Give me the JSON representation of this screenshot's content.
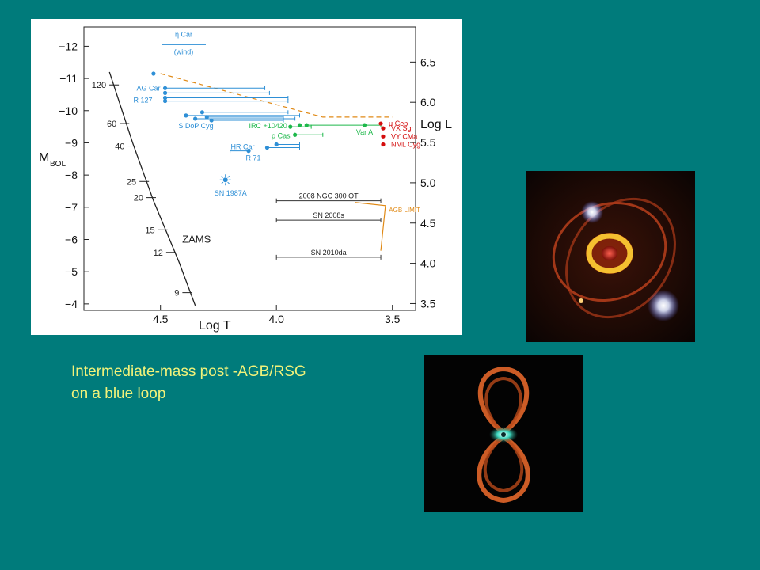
{
  "caption": {
    "line1": "Intermediate-mass post -AGB/RSG",
    "line2": "on a blue loop"
  },
  "chart_data": {
    "type": "scatter",
    "title": "",
    "xlabel": "Log  T",
    "ylabel_left": "M",
    "ylabel_left_sub": "BOL",
    "ylabel_right": "Log  L",
    "xlim": [
      4.83,
      3.4
    ],
    "ylim_mbol": [
      -3.8,
      -12.6
    ],
    "x_ticks": [
      4.5,
      4.0,
      3.5
    ],
    "x_tick_labels": [
      "4.5",
      "4.0",
      "3.5"
    ],
    "y_left_ticks": [
      -12,
      -11,
      -10,
      -9,
      -8,
      -7,
      -6,
      -5,
      -4
    ],
    "y_left_tick_labels": [
      "−12",
      "−11",
      "−10",
      "−9",
      "−8",
      "−7",
      "−6",
      "−5",
      "−4"
    ],
    "y_right_ticks": [
      6.5,
      6.0,
      5.5,
      5.0,
      4.5,
      4.0,
      3.5
    ],
    "y_right_tick_labels": [
      "6.5",
      "6.0",
      "5.5",
      "5.0",
      "4.5",
      "4.0",
      "3.5"
    ],
    "zams": {
      "label": "ZAMS",
      "points": [
        [
          4.72,
          -11.2
        ],
        [
          4.62,
          -9.0
        ],
        [
          4.53,
          -7.2
        ],
        [
          4.42,
          -5.3
        ],
        [
          4.35,
          -3.95
        ]
      ],
      "mass_marks": [
        {
          "mass": "120",
          "logT": 4.7,
          "mbol": -10.8
        },
        {
          "mass": "60",
          "logT": 4.655,
          "mbol": -9.6
        },
        {
          "mass": "40",
          "logT": 4.62,
          "mbol": -8.9
        },
        {
          "mass": "25",
          "logT": 4.57,
          "mbol": -7.8
        },
        {
          "mass": "20",
          "logT": 4.54,
          "mbol": -7.3
        },
        {
          "mass": "15",
          "logT": 4.49,
          "mbol": -6.3
        },
        {
          "mass": "12",
          "logT": 4.455,
          "mbol": -5.6
        },
        {
          "mass": "9",
          "logT": 4.385,
          "mbol": -4.35
        }
      ]
    },
    "stars": [
      {
        "name": "η Car",
        "group": "lbv",
        "logT": 4.4,
        "mbol": -12.05,
        "label_text": "η Car",
        "sub_label": "(wind)"
      },
      {
        "name": "top-point",
        "group": "lbv",
        "logT": 4.53,
        "mbol": -11.15,
        "label_text": ""
      },
      {
        "name": "AG Car",
        "group": "lbv",
        "logT": 4.48,
        "mbol": -10.7,
        "label_text": "AG Car",
        "range_to": 4.05
      },
      {
        "name": "AG Car 2",
        "group": "lbv",
        "logT": 4.48,
        "mbol": -10.55,
        "label_text": "",
        "range_to": 4.03
      },
      {
        "name": "R 127",
        "group": "lbv",
        "logT": 4.48,
        "mbol": -10.4,
        "label_text": "R 127",
        "range_to": 3.95
      },
      {
        "name": "R 127 2",
        "group": "lbv",
        "logT": 4.48,
        "mbol": -10.3,
        "label_text": "",
        "range_to": 3.95
      },
      {
        "name": "S Dor",
        "group": "lbv",
        "logT": 4.39,
        "mbol": -9.85,
        "label_text": "S Dor",
        "range_to": 3.9
      },
      {
        "name": "S Dor 2",
        "group": "lbv",
        "logT": 4.35,
        "mbol": -9.75,
        "label_text": "",
        "range_to": 3.92
      },
      {
        "name": "P Cyg",
        "group": "lbv",
        "logT": 4.32,
        "mbol": -9.95,
        "label_text": "P Cyg",
        "range_to": 3.95
      },
      {
        "name": "P Cyg 2",
        "group": "lbv",
        "logT": 4.3,
        "mbol": -9.8,
        "label_text": "",
        "range_to": 3.97
      },
      {
        "name": "P Cyg 3",
        "group": "lbv",
        "logT": 4.28,
        "mbol": -9.7,
        "label_text": "",
        "range_to": 3.97
      },
      {
        "name": "HR Car",
        "group": "lbv",
        "logT": 4.04,
        "mbol": -8.85,
        "label_text": "HR Car",
        "range_to": 3.9
      },
      {
        "name": "HR Car 2",
        "group": "lbv",
        "logT": 4.0,
        "mbol": -8.95,
        "label_text": "",
        "range_to": 3.9
      },
      {
        "name": "R 71",
        "group": "lbv",
        "logT": 4.12,
        "mbol": -8.75,
        "label_text": "R 71",
        "range_to": 4.2
      },
      {
        "name": "SN 1987A",
        "group": "lbv",
        "logT": 4.22,
        "mbol": -7.85,
        "label_text": "SN 1987A"
      },
      {
        "name": "IRC +10420",
        "group": "yellow",
        "logT": 3.94,
        "mbol": -9.5,
        "label_text": "IRC +10420",
        "range_to": 3.85
      },
      {
        "name": "IRC 2",
        "group": "yellow",
        "logT": 3.9,
        "mbol": -9.55,
        "label_text": ""
      },
      {
        "name": "IRC 3",
        "group": "yellow",
        "logT": 3.87,
        "mbol": -9.55,
        "label_text": "",
        "range_to": 3.55
      },
      {
        "name": "ρ Cas",
        "group": "yellow",
        "logT": 3.92,
        "mbol": -9.25,
        "label_text": "ρ Cas",
        "range_to": 3.8
      },
      {
        "name": "Var A",
        "group": "yellow",
        "logT": 3.62,
        "mbol": -9.55,
        "label_text": "Var A"
      },
      {
        "name": "μ Cep",
        "group": "rsg",
        "logT": 3.55,
        "mbol": -9.6,
        "label_text": "μ Cep"
      },
      {
        "name": "VX Sgr",
        "group": "rsg",
        "logT": 3.54,
        "mbol": -9.45,
        "label_text": "VX Sgr"
      },
      {
        "name": "VY CMa",
        "group": "rsg",
        "logT": 3.54,
        "mbol": -9.2,
        "label_text": "VY CMa"
      },
      {
        "name": "NML Cyg",
        "group": "rsg",
        "logT": 3.54,
        "mbol": -8.95,
        "label_text": "NML Cyg"
      }
    ],
    "transients": [
      {
        "label": "2008  NGC 300 OT",
        "logT_from": 4.0,
        "logT_to": 3.55,
        "mbol": -7.2
      },
      {
        "label": "SN 2008s",
        "logT_from": 4.0,
        "logT_to": 3.55,
        "mbol": -6.6
      },
      {
        "label": "SN 2010da",
        "logT_from": 4.0,
        "logT_to": 3.55,
        "mbol": -5.45
      }
    ],
    "agb_limit": {
      "label": "AGB  LIMIT",
      "points": [
        [
          3.66,
          -7.15
        ],
        [
          3.53,
          -7.05
        ],
        [
          3.55,
          -5.65
        ]
      ]
    },
    "hd_limit": {
      "points": [
        [
          4.5,
          -11.15
        ],
        [
          3.8,
          -9.8
        ],
        [
          3.5,
          -9.8
        ]
      ]
    },
    "colors": {
      "lbv": "#2e8fd6",
      "yellow": "#1db84a",
      "rsg": "#d40d0d",
      "limit": "#e08a17",
      "axis": "#222222"
    }
  },
  "photos": [
    {
      "name": "ring-nebula-photo"
    },
    {
      "name": "hourglass-nebula-photo"
    }
  ]
}
